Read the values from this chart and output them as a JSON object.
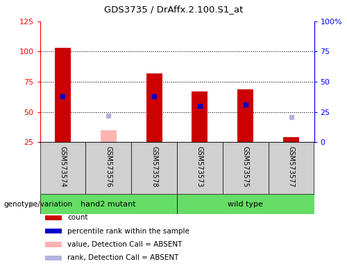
{
  "title": "GDS3735 / DrAffx.2.100.S1_at",
  "samples": [
    "GSM573574",
    "GSM573576",
    "GSM573578",
    "GSM573573",
    "GSM573575",
    "GSM573577"
  ],
  "count_values": [
    103,
    null,
    82,
    67,
    69,
    29
  ],
  "rank_values": [
    63,
    null,
    63,
    55,
    56,
    null
  ],
  "absent_count_values": [
    null,
    35,
    null,
    null,
    null,
    null
  ],
  "absent_rank_values": [
    null,
    47,
    null,
    null,
    null,
    46
  ],
  "ylim_left": [
    25,
    125
  ],
  "ylim_right": [
    0,
    100
  ],
  "yticks_left": [
    25,
    50,
    75,
    100,
    125
  ],
  "yticks_right": [
    0,
    25,
    50,
    75,
    100
  ],
  "ytick_labels_left": [
    "25",
    "50",
    "75",
    "100",
    "125"
  ],
  "ytick_labels_right": [
    "0",
    "25",
    "50",
    "75",
    "100%"
  ],
  "grid_values": [
    50,
    75,
    100
  ],
  "bar_color": "#cc0000",
  "rank_color": "#0000cc",
  "absent_bar_color": "#ffb3b3",
  "absent_rank_color": "#b3b3dd",
  "bar_width": 0.35,
  "legend_items": [
    {
      "label": "count",
      "color": "#cc0000"
    },
    {
      "label": "percentile rank within the sample",
      "color": "#0000cc"
    },
    {
      "label": "value, Detection Call = ABSENT",
      "color": "#ffb3b3"
    },
    {
      "label": "rank, Detection Call = ABSENT",
      "color": "#b3b3dd"
    }
  ],
  "genotype_label": "genotype/variation",
  "group1_label": "hand2 mutant",
  "group2_label": "wild type",
  "group_color": "#66dd66",
  "figsize": [
    5.0,
    3.84
  ],
  "dpi": 100
}
